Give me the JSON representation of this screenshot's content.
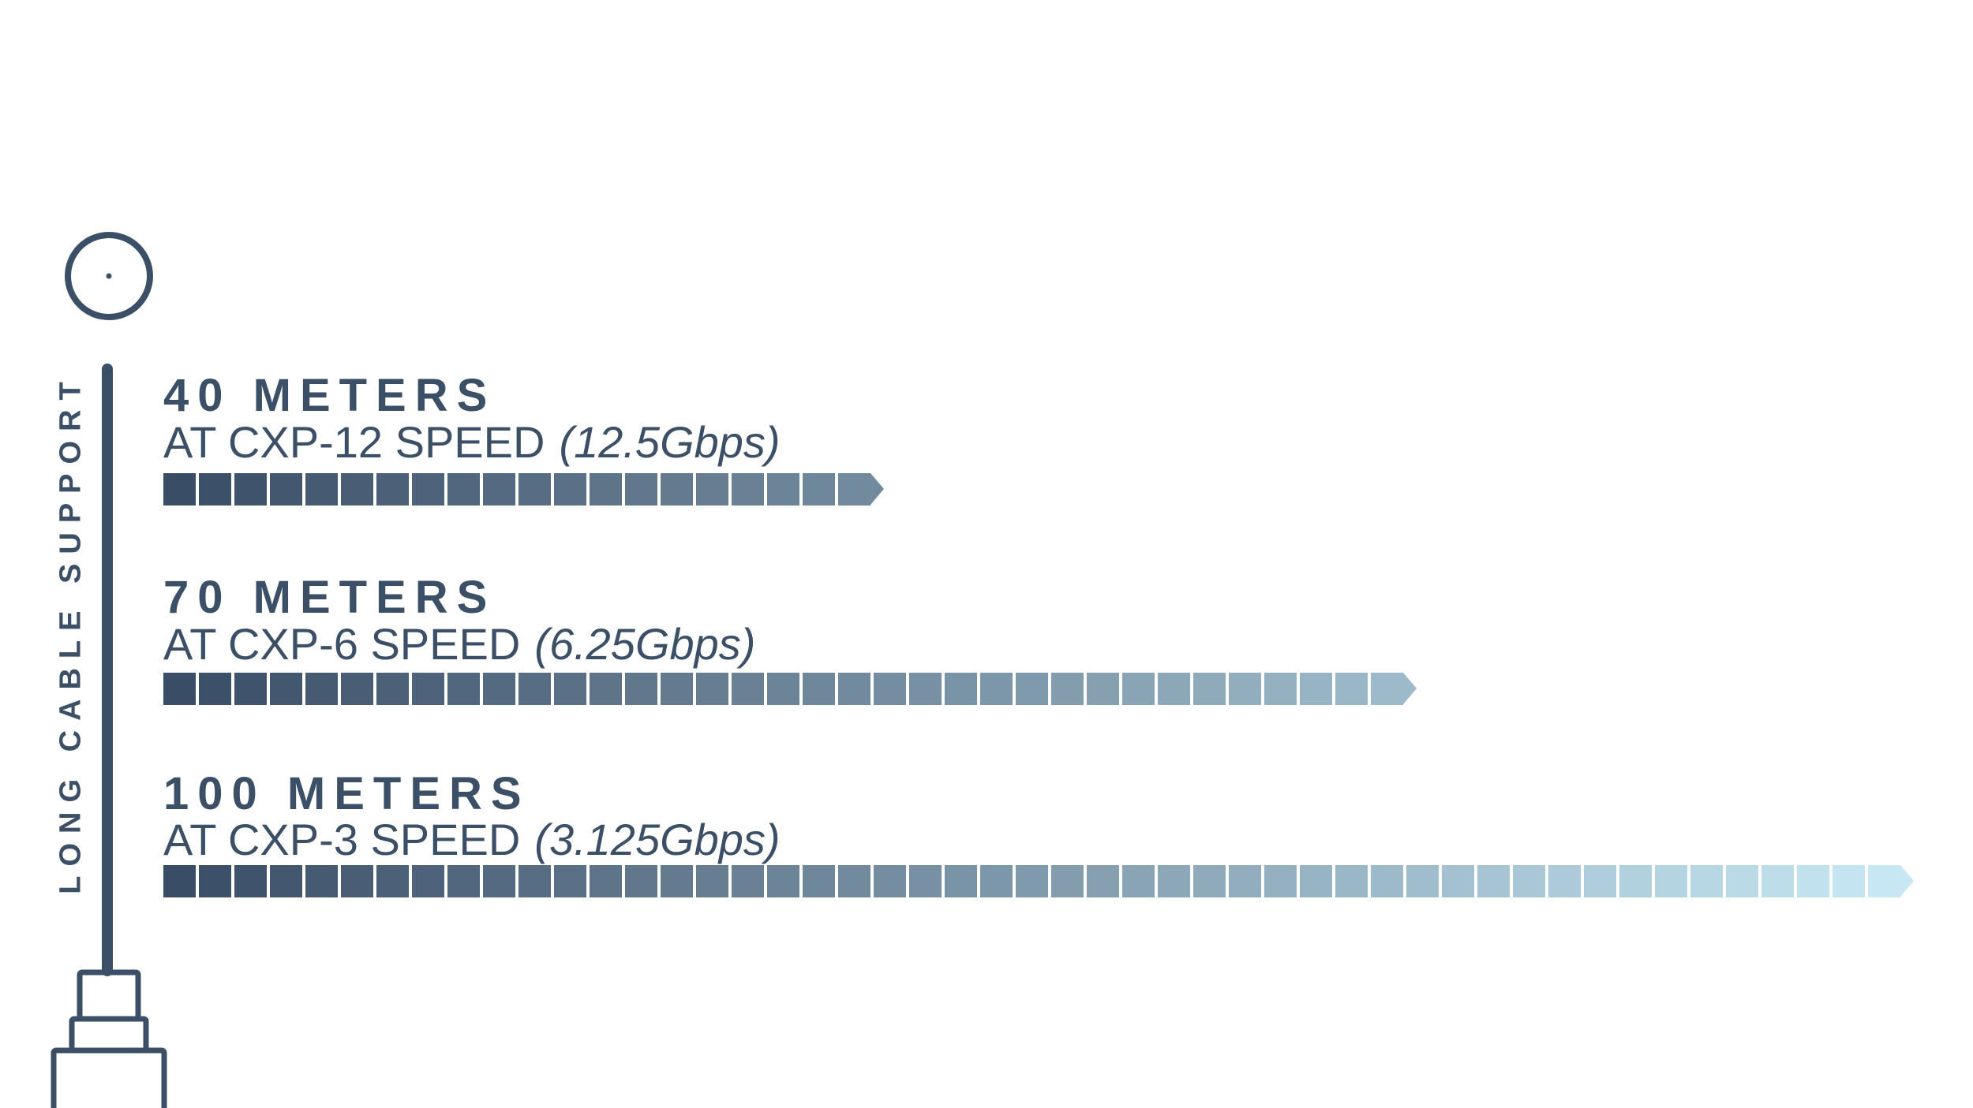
{
  "side_label": "LONG CABLE SUPPORT",
  "colors": {
    "text": "#3b4f67",
    "start": "#3a4d66",
    "end": "#c6e7f3"
  },
  "chart_data": {
    "type": "bar",
    "orientation": "horizontal",
    "categories": [
      "40 METERS",
      "70 METERS",
      "100 METERS"
    ],
    "values": [
      40,
      70,
      100
    ],
    "unit": "meters",
    "items": [
      {
        "title": "40 METERS",
        "speed": "AT CXP-12 SPEED",
        "rate": "(12.5Gbps)",
        "value": 40
      },
      {
        "title": "70 METERS",
        "speed": "AT CXP-6 SPEED",
        "rate": "(6.25Gbps)",
        "value": 70
      },
      {
        "title": "100 METERS",
        "speed": "AT CXP-3 SPEED",
        "rate": "(3.125Gbps)",
        "value": 100
      }
    ]
  }
}
